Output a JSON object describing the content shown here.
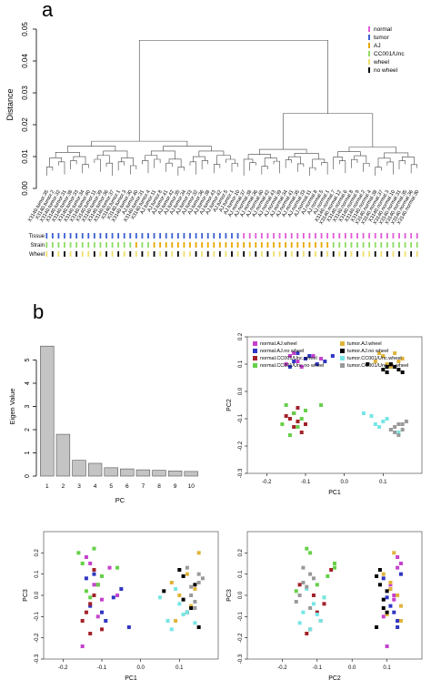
{
  "figure": {
    "panel_a": "a",
    "panel_b": "b"
  },
  "colors": {
    "normal": "#e05ad6",
    "tumor": "#3a5fd0",
    "AJ": "#e8a800",
    "CC001": "#8cdc63",
    "wheel": "#f2de6b",
    "no_wheel": "#000000",
    "s_normal_aj_wheel": "#c541cc",
    "s_normal_aj_nowheel": "#2f36c2",
    "s_normal_cc_wheel": "#a3212a",
    "s_normal_cc_nowheel": "#66d04a",
    "s_tumor_aj_wheel": "#e0b33a",
    "s_tumor_aj_nowheel": "#000000",
    "s_tumor_cc_wheel": "#76e6e6",
    "s_tumor_cc_nowheel": "#9a9a9a",
    "bar": "#c4c4c4"
  },
  "chart_data": [
    {
      "type": "dendrogram",
      "ylabel": "Distance",
      "ylim": [
        0,
        0.05
      ],
      "yticks": [
        "0.00",
        "0.01",
        "0.02",
        "0.03",
        "0.04",
        "0.05"
      ],
      "legend": [
        "normal",
        "tumor",
        "AJ",
        "CC001/Unc",
        "wheel",
        "no wheel"
      ],
      "leaf_labels": [
        "X3140.tumor.35",
        "X3140.tumor.2",
        "X3140.tumor.32",
        "X3140.tumor.31",
        "X3140.tumor.38",
        "X3140.tumor.33",
        "X3140.tumor.34",
        "X3140.tumor.40",
        "X3140.tumor.11",
        "X3140.tumor.39",
        "X3140.tumor.36",
        "X3140.tumor.37",
        "X3140.tumor.1",
        "X3140.tumor.3",
        "X3140.tumor.30",
        "AJ.tumor.40",
        "X3140.tumor.31",
        "X3140.tumor.4",
        "AJ.tumor.11",
        "AJ.tumor.8",
        "AJ.tumor.41",
        "AJ.tumor.42",
        "AJ.tumor.35",
        "AJ.tumor.34",
        "AJ.tumor.33",
        "AJ.tumor.32",
        "AJ.tumor.36",
        "AJ.tumor.38",
        "AJ.tumor.43",
        "AJ.tumor.42",
        "AJ.tumor.5",
        "AJ.tumor.1",
        "AJ.tumor.10",
        "AJ.normal.37",
        "AJ.normal.38",
        "AJ.normal.36",
        "AJ.normal.40",
        "AJ.normal.42",
        "AJ.normal.43",
        "AJ.normal.39",
        "AJ.normal.34",
        "AJ.normal.41",
        "AJ.normal.35",
        "AJ.normal.33",
        "AJ.normal.11",
        "AJ.normal.8",
        "AJ.normal.5",
        "AJ.normal.1",
        "X3140.normal.7",
        "X3140.normal.12",
        "X3140.normal.6",
        "X3140.normal.8",
        "X3140.normal.9",
        "X3140.normal.2",
        "X3140.normal.4",
        "X3140.normal.38",
        "X3140.normal.37",
        "X3140.normal.3",
        "X3140.normal.10",
        "X3140.normal.31",
        "X3140.normal.35",
        "X3140.normal.36",
        "X3140.normal.30"
      ],
      "tracks": [
        {
          "name": "Tissue",
          "pattern": [
            "tumor",
            "tumor",
            "tumor",
            "tumor",
            "tumor",
            "tumor",
            "tumor",
            "tumor",
            "tumor",
            "tumor",
            "tumor",
            "tumor",
            "tumor",
            "tumor",
            "tumor",
            "tumor",
            "tumor",
            "tumor",
            "tumor",
            "tumor",
            "tumor",
            "tumor",
            "tumor",
            "tumor",
            "tumor",
            "tumor",
            "tumor",
            "tumor",
            "tumor",
            "tumor",
            "tumor",
            "tumor",
            "tumor",
            "normal",
            "normal",
            "normal",
            "normal",
            "normal",
            "normal",
            "normal",
            "normal",
            "normal",
            "normal",
            "normal",
            "normal",
            "normal",
            "normal",
            "normal",
            "normal",
            "normal",
            "normal",
            "normal",
            "normal",
            "normal",
            "normal",
            "normal",
            "normal",
            "normal",
            "normal",
            "normal",
            "normal",
            "normal",
            "normal"
          ]
        },
        {
          "name": "Strain",
          "pattern": [
            "CC001",
            "CC001",
            "CC001",
            "CC001",
            "CC001",
            "CC001",
            "CC001",
            "CC001",
            "CC001",
            "CC001",
            "CC001",
            "CC001",
            "CC001",
            "CC001",
            "CC001",
            "AJ",
            "CC001",
            "CC001",
            "AJ",
            "AJ",
            "AJ",
            "AJ",
            "AJ",
            "AJ",
            "AJ",
            "AJ",
            "AJ",
            "AJ",
            "AJ",
            "AJ",
            "AJ",
            "AJ",
            "AJ",
            "AJ",
            "AJ",
            "AJ",
            "AJ",
            "AJ",
            "AJ",
            "AJ",
            "AJ",
            "AJ",
            "AJ",
            "AJ",
            "AJ",
            "AJ",
            "AJ",
            "AJ",
            "CC001",
            "CC001",
            "CC001",
            "CC001",
            "CC001",
            "CC001",
            "CC001",
            "CC001",
            "CC001",
            "CC001",
            "CC001",
            "CC001",
            "CC001",
            "CC001",
            "CC001"
          ]
        },
        {
          "name": "Wheel",
          "pattern": [
            "wheel",
            "no_wheel",
            "wheel",
            "no_wheel",
            "wheel",
            "no_wheel",
            "wheel",
            "wheel",
            "no_wheel",
            "wheel",
            "no_wheel",
            "wheel",
            "no_wheel",
            "wheel",
            "no_wheel",
            "wheel",
            "no_wheel",
            "wheel",
            "no_wheel",
            "wheel",
            "no_wheel",
            "wheel",
            "no_wheel",
            "wheel",
            "wheel",
            "no_wheel",
            "wheel",
            "no_wheel",
            "wheel",
            "no_wheel",
            "wheel",
            "no_wheel",
            "wheel",
            "no_wheel",
            "wheel",
            "no_wheel",
            "wheel",
            "no_wheel",
            "wheel",
            "wheel",
            "no_wheel",
            "wheel",
            "no_wheel",
            "wheel",
            "no_wheel",
            "wheel",
            "no_wheel",
            "wheel",
            "no_wheel",
            "wheel",
            "no_wheel",
            "wheel",
            "no_wheel",
            "wheel",
            "wheel",
            "no_wheel",
            "wheel",
            "no_wheel",
            "wheel",
            "no_wheel",
            "wheel",
            "no_wheel",
            "wheel"
          ]
        }
      ]
    },
    {
      "type": "bar",
      "xlabel": "PC",
      "ylabel": "Eigen Value",
      "categories": [
        "1",
        "2",
        "3",
        "4",
        "5",
        "6",
        "7",
        "8",
        "9",
        "10"
      ],
      "values": [
        5.6,
        1.8,
        0.68,
        0.55,
        0.36,
        0.31,
        0.27,
        0.25,
        0.22,
        0.2
      ],
      "ylim": [
        0,
        6
      ],
      "yticks": [
        "0",
        "1",
        "2",
        "3",
        "4",
        "5"
      ]
    },
    {
      "type": "scatter",
      "xlabel": "PC1",
      "ylabel": "PC2",
      "xlim": [
        -0.25,
        0.2
      ],
      "ylim": [
        -0.3,
        0.2
      ],
      "xticks": [
        "-0.2",
        "-0.1",
        "0.0",
        "0.1"
      ],
      "yticks": [
        "-0.3",
        "-0.2",
        "-0.1",
        "0.0",
        "0.1",
        "0.2"
      ],
      "legend": [
        "normal.AJ.wheel",
        "normal.AJ.no wheel",
        "normal.CC001/Unc.wheel",
        "normal.CC001/Unc.no wheel",
        "tumor.AJ.wheel",
        "tumor.AJ.no wheel",
        "tumor.CC001/Unc.wheel",
        "tumor.CC001/Unc.no wheel"
      ]
    },
    {
      "type": "scatter",
      "xlabel": "PC1",
      "ylabel": "PC3",
      "xlim": [
        -0.25,
        0.2
      ],
      "ylim": [
        -0.3,
        0.3
      ],
      "xticks": [
        "-0.2",
        "-0.1",
        "0.0",
        "0.1"
      ],
      "yticks": [
        "-0.3",
        "-0.2",
        "-0.1",
        "0.0",
        "0.1",
        "0.2"
      ]
    },
    {
      "type": "scatter",
      "xlabel": "PC2",
      "ylabel": "PC3",
      "xlim": [
        -0.3,
        0.2
      ],
      "ylim": [
        -0.3,
        0.3
      ],
      "xticks": [
        "-0.2",
        "-0.1",
        "0.0",
        "0.1"
      ],
      "yticks": [
        "-0.3",
        "-0.2",
        "-0.1",
        "0.0",
        "0.1",
        "0.2"
      ]
    }
  ],
  "scatter_points": {
    "groups": [
      "s_normal_aj_wheel",
      "s_normal_aj_nowheel",
      "s_normal_cc_wheel",
      "s_normal_cc_nowheel",
      "s_tumor_aj_wheel",
      "s_tumor_aj_nowheel",
      "s_tumor_cc_wheel",
      "s_tumor_cc_nowheel"
    ],
    "pc_scores": [
      [
        [
          -0.14,
          0.13,
          0.18
        ],
        [
          -0.12,
          0.11,
          0.05
        ],
        [
          -0.1,
          0.12,
          -0.02
        ],
        [
          -0.08,
          0.13,
          0.13
        ],
        [
          -0.15,
          0.1,
          -0.24
        ],
        [
          -0.06,
          0.12,
          0.0
        ],
        [
          -0.13,
          0.14,
          0.15
        ],
        [
          -0.11,
          0.09,
          -0.1
        ]
      ],
      [
        [
          -0.13,
          0.11,
          -0.05
        ],
        [
          -0.09,
          0.13,
          -0.12
        ],
        [
          -0.07,
          0.1,
          -0.01
        ],
        [
          -0.12,
          0.14,
          0.1
        ],
        [
          -0.03,
          0.13,
          -0.15
        ],
        [
          -0.05,
          0.11,
          0.03
        ],
        [
          -0.1,
          0.12,
          -0.08
        ],
        [
          -0.14,
          0.09,
          0.08
        ]
      ],
      [
        [
          -0.14,
          -0.1,
          -0.08
        ],
        [
          -0.12,
          -0.06,
          0.12
        ],
        [
          -0.1,
          -0.12,
          -0.16
        ],
        [
          -0.13,
          -0.08,
          -0.04
        ],
        [
          -0.11,
          -0.15,
          0.05
        ],
        [
          -0.15,
          -0.09,
          -0.12
        ],
        [
          -0.12,
          -0.11,
          0.0
        ],
        [
          -0.13,
          -0.13,
          -0.18
        ]
      ],
      [
        [
          -0.15,
          -0.05,
          0.15
        ],
        [
          -0.12,
          -0.13,
          0.22
        ],
        [
          -0.1,
          -0.07,
          0.09
        ],
        [
          -0.14,
          -0.16,
          0.02
        ],
        [
          -0.06,
          -0.05,
          0.13
        ],
        [
          -0.11,
          -0.1,
          0.05
        ],
        [
          -0.13,
          -0.08,
          -0.01
        ],
        [
          -0.16,
          -0.12,
          0.2
        ]
      ],
      [
        [
          0.1,
          0.13,
          0.0
        ],
        [
          0.13,
          0.14,
          -0.05
        ],
        [
          0.12,
          0.09,
          0.1
        ],
        [
          0.08,
          0.11,
          0.06
        ],
        [
          0.15,
          0.12,
          0.2
        ],
        [
          0.11,
          0.1,
          -0.09
        ],
        [
          0.14,
          0.11,
          0.03
        ],
        [
          0.09,
          0.14,
          -0.12
        ]
      ],
      [
        [
          0.11,
          0.09,
          -0.02
        ],
        [
          0.14,
          0.08,
          0.05
        ],
        [
          0.12,
          0.1,
          -0.08
        ],
        [
          0.1,
          0.08,
          0.12
        ],
        [
          0.15,
          0.07,
          -0.15
        ],
        [
          0.06,
          0.1,
          0.02
        ],
        [
          0.13,
          0.09,
          -0.06
        ],
        [
          0.11,
          0.07,
          0.09
        ]
      ],
      [
        [
          0.07,
          -0.09,
          -0.12
        ],
        [
          0.1,
          -0.11,
          -0.04
        ],
        [
          0.12,
          -0.14,
          -0.08
        ],
        [
          0.05,
          -0.08,
          -0.01
        ],
        [
          0.14,
          -0.15,
          -0.13
        ],
        [
          0.09,
          -0.13,
          0.03
        ],
        [
          0.11,
          -0.1,
          -0.09
        ],
        [
          0.08,
          -0.12,
          -0.16
        ]
      ],
      [
        [
          0.13,
          -0.13,
          0.04
        ],
        [
          0.15,
          -0.12,
          0.1
        ],
        [
          0.14,
          -0.16,
          -0.03
        ],
        [
          0.12,
          -0.14,
          0.13
        ],
        [
          0.16,
          -0.11,
          0.08
        ],
        [
          0.13,
          -0.15,
          0.0
        ],
        [
          0.15,
          -0.14,
          0.06
        ],
        [
          0.14,
          -0.12,
          -0.06
        ]
      ]
    ]
  }
}
